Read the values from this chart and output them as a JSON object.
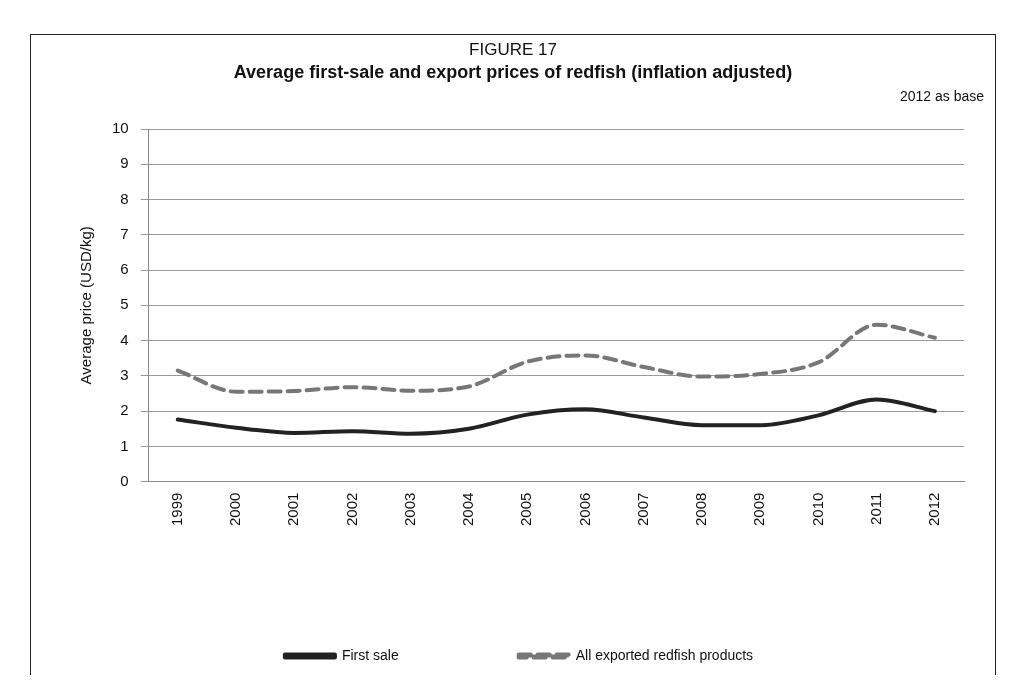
{
  "chart_data": {
    "type": "line",
    "title": "FIGURE 17",
    "subtitle": "Average first-sale and export prices of redfish (inflation adjusted)",
    "annotations": [
      "2012 as base"
    ],
    "ylabel": "Average price (USD/kg)",
    "categories": [
      "1999",
      "2000",
      "2001",
      "2002",
      "2003",
      "2004",
      "2005",
      "2006",
      "2007",
      "2008",
      "2009",
      "2010",
      "2011",
      "2012"
    ],
    "series": [
      {
        "name": "First sale",
        "color": "#222222",
        "line_style": "solid",
        "values": [
          1.76,
          1.53,
          1.38,
          1.43,
          1.36,
          1.5,
          1.9,
          2.05,
          1.82,
          1.6,
          1.6,
          1.88,
          2.33,
          2.0
        ]
      },
      {
        "name": "All exported redfish products",
        "color": "#777777",
        "line_style": "dashed",
        "values": [
          3.15,
          2.55,
          2.57,
          2.68,
          2.58,
          2.7,
          3.4,
          3.58,
          3.25,
          2.98,
          3.05,
          3.38,
          4.45,
          4.08
        ]
      }
    ],
    "ylim": [
      0,
      10
    ],
    "yticks": [
      0,
      1,
      2,
      3,
      4,
      5,
      6,
      7,
      8,
      9,
      10
    ],
    "grid": "y",
    "legend": "bottom",
    "marker": "none"
  }
}
